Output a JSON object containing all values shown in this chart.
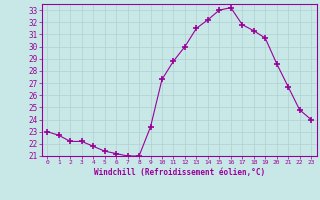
{
  "x": [
    0,
    1,
    2,
    3,
    4,
    5,
    6,
    7,
    8,
    9,
    10,
    11,
    12,
    13,
    14,
    15,
    16,
    17,
    18,
    19,
    20,
    21,
    22,
    23
  ],
  "y": [
    23.0,
    22.7,
    22.2,
    22.2,
    21.8,
    21.4,
    21.2,
    21.0,
    21.0,
    23.4,
    27.3,
    28.8,
    30.0,
    31.5,
    32.2,
    33.0,
    33.2,
    31.8,
    31.3,
    30.7,
    28.6,
    26.7,
    24.8,
    24.0
  ],
  "line_color": "#990099",
  "marker": "+",
  "marker_size": 4,
  "bg_color": "#c8e8e8",
  "grid_color": "#b0d0d0",
  "xlabel": "Windchill (Refroidissement éolien,°C)",
  "xlabel_color": "#990099",
  "tick_color": "#990099",
  "ylim": [
    21,
    33.5
  ],
  "yticks": [
    21,
    22,
    23,
    24,
    25,
    26,
    27,
    28,
    29,
    30,
    31,
    32,
    33
  ],
  "xlim": [
    -0.5,
    23.5
  ]
}
